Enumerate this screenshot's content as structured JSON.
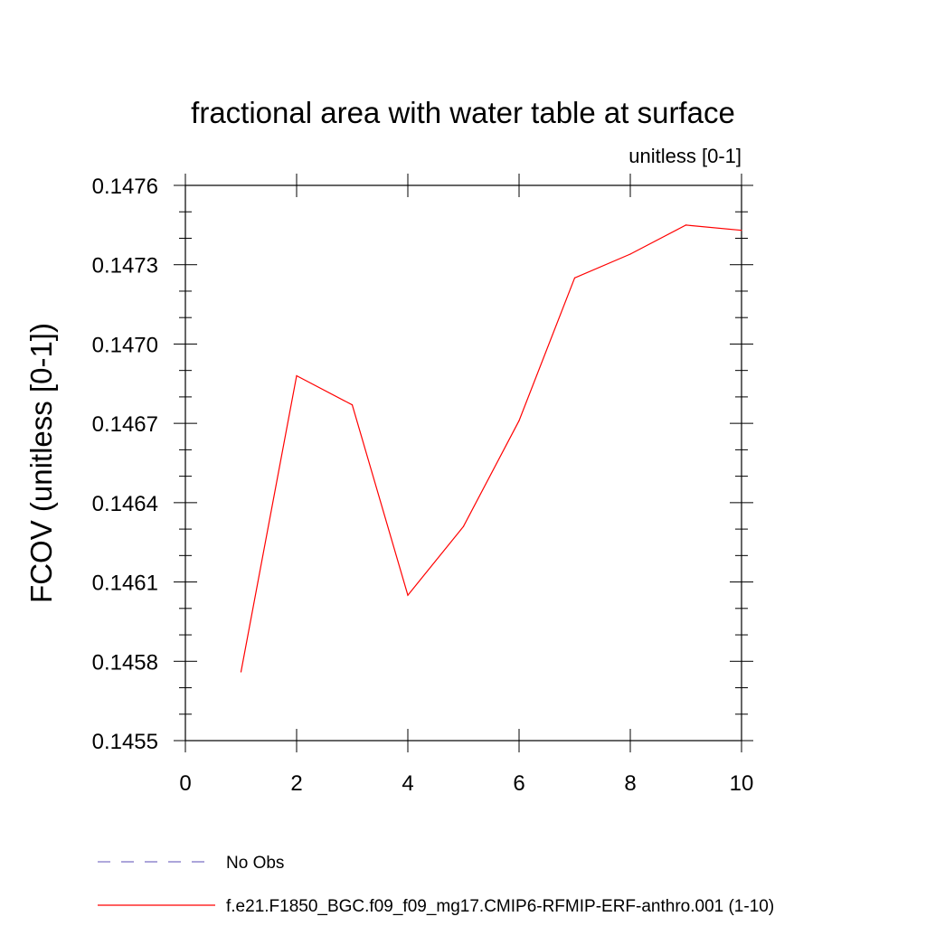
{
  "chart_data": {
    "type": "line",
    "title": "fractional area with water table at surface",
    "units_label": "unitless [0-1]",
    "ylabel": "FCOV  (unitless [0-1])",
    "xlabel": "",
    "xlim": [
      0,
      10
    ],
    "ylim": [
      0.1455,
      0.1476
    ],
    "x_ticks": [
      0,
      2,
      4,
      6,
      8,
      10
    ],
    "x_tick_labels": [
      "0",
      "2",
      "4",
      "6",
      "8",
      "10"
    ],
    "y_ticks": [
      0.1455,
      0.1458,
      0.1461,
      0.1464,
      0.1467,
      0.147,
      0.1473,
      0.1476
    ],
    "y_tick_labels": [
      "0.1455",
      "0.1458",
      "0.1461",
      "0.1464",
      "0.1467",
      "0.1470",
      "0.1473",
      "0.1476"
    ],
    "series": [
      {
        "name": "f.e21.F1850_BGC.f09_f09_mg17.CMIP6-RFMIP-ERF-anthro.001 (1-10)",
        "color": "#ff0000",
        "x": [
          1,
          2,
          3,
          4,
          5,
          6,
          7,
          8,
          9,
          10
        ],
        "values": [
          0.14576,
          0.14688,
          0.14677,
          0.14605,
          0.14631,
          0.14671,
          0.14725,
          0.14734,
          0.14745,
          0.14743
        ]
      }
    ],
    "legend": [
      {
        "label": "No Obs",
        "color": "#7b6fc4",
        "style": "dashed"
      },
      {
        "label": "f.e21.F1850_BGC.f09_f09_mg17.CMIP6-RFMIP-ERF-anthro.001 (1-10)",
        "color": "#ff0000",
        "style": "solid"
      }
    ],
    "grid": false,
    "legend_position": "bottom"
  }
}
